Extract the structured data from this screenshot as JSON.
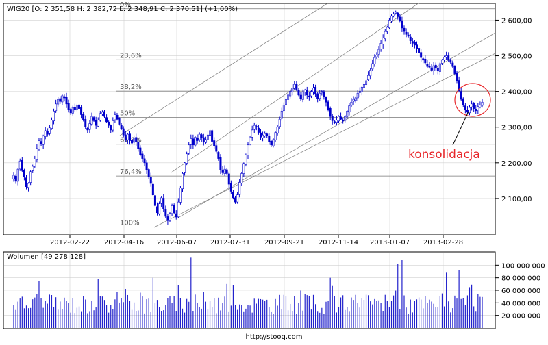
{
  "title": "WIG20",
  "ohlc_info": "[O: 2 351,58  H: 2 382,72  L: 2 348,91  C: 2 370,51] (+1,00%)",
  "volume_info": "Wolumen [49 278 128]",
  "footer": "http://stooq.com",
  "annotation": "konsolidacja",
  "colors": {
    "series": "#0000cc",
    "volume": "#2222cc",
    "grid": "#999999",
    "channel": "#999999",
    "annotation": "#e8262a"
  },
  "chart_data": [
    {
      "type": "candlestick",
      "title": "WIG20",
      "y_ticks": [
        "2 100,00",
        "2 200,00",
        "2 300,00",
        "2 400,00",
        "2 500,00",
        "2 600,00"
      ],
      "y_tick_values": [
        2100,
        2200,
        2300,
        2400,
        2500,
        2600
      ],
      "ylim": [
        2000,
        2645
      ],
      "x_ticks": [
        "2012-02-22",
        "2012-04-16",
        "2012-06-07",
        "2012-07-31",
        "2012-09-21",
        "2012-11-14",
        "2013-01-07",
        "2013-02-28"
      ],
      "fibonacci_levels": [
        {
          "label": "0%",
          "value": 2632
        },
        {
          "label": "23,6%",
          "value": 2489
        },
        {
          "label": "38,2%",
          "value": 2401
        },
        {
          "label": "50%",
          "value": 2327
        },
        {
          "label": "61,8%",
          "value": 2252
        },
        {
          "label": "76,4%",
          "value": 2163
        },
        {
          "label": "100%",
          "value": 2020
        }
      ],
      "closes": [
        2165,
        2148,
        2182,
        2205,
        2178,
        2160,
        2133,
        2142,
        2175,
        2190,
        2210,
        2240,
        2262,
        2252,
        2275,
        2290,
        2280,
        2298,
        2320,
        2345,
        2365,
        2378,
        2372,
        2388,
        2382,
        2365,
        2350,
        2340,
        2355,
        2348,
        2362,
        2352,
        2335,
        2320,
        2300,
        2292,
        2310,
        2330,
        2318,
        2305,
        2320,
        2338,
        2342,
        2330,
        2315,
        2305,
        2292,
        2318,
        2335,
        2322,
        2308,
        2295,
        2278,
        2265,
        2280,
        2262,
        2255,
        2270,
        2258,
        2240,
        2222,
        2212,
        2200,
        2180,
        2160,
        2142,
        2110,
        2080,
        2060,
        2085,
        2102,
        2070,
        2050,
        2038,
        2058,
        2080,
        2060,
        2048,
        2090,
        2130,
        2170,
        2200,
        2225,
        2250,
        2268,
        2250,
        2272,
        2262,
        2280,
        2270,
        2258,
        2265,
        2278,
        2290,
        2260,
        2248,
        2232,
        2212,
        2180,
        2172,
        2182,
        2170,
        2140,
        2120,
        2102,
        2090,
        2110,
        2145,
        2170,
        2198,
        2222,
        2250,
        2270,
        2292,
        2305,
        2300,
        2285,
        2272,
        2278,
        2282,
        2275,
        2258,
        2250,
        2265,
        2285,
        2300,
        2322,
        2345,
        2362,
        2378,
        2390,
        2400,
        2410,
        2420,
        2405,
        2390,
        2380,
        2398,
        2404,
        2390,
        2385,
        2400,
        2410,
        2392,
        2380,
        2395,
        2400,
        2385,
        2370,
        2350,
        2330,
        2318,
        2312,
        2320,
        2330,
        2322,
        2318,
        2330,
        2345,
        2360,
        2370,
        2378,
        2382,
        2395,
        2400,
        2412,
        2420,
        2430,
        2445,
        2460,
        2478,
        2495,
        2502,
        2518,
        2535,
        2550,
        2568,
        2580,
        2600,
        2612,
        2618,
        2622,
        2610,
        2598,
        2578,
        2568,
        2560,
        2555,
        2542,
        2535,
        2530,
        2520,
        2508,
        2495,
        2488,
        2480,
        2470,
        2468,
        2460,
        2472,
        2465,
        2458,
        2478,
        2488,
        2496,
        2500,
        2490,
        2482,
        2470,
        2450,
        2430,
        2402,
        2378,
        2362,
        2348,
        2342,
        2355,
        2365,
        2352,
        2346,
        2358,
        2362,
        2370
      ]
    },
    {
      "type": "bar",
      "title": "Wolumen",
      "y_ticks": [
        "20 000 000",
        "40 000 000",
        "60 000 000",
        "80 000 000",
        "100 000 000"
      ],
      "y_tick_values": [
        20000000,
        40000000,
        60000000,
        80000000,
        100000000
      ],
      "ylim": [
        0,
        120000000
      ],
      "last_value": 49278128
    }
  ]
}
